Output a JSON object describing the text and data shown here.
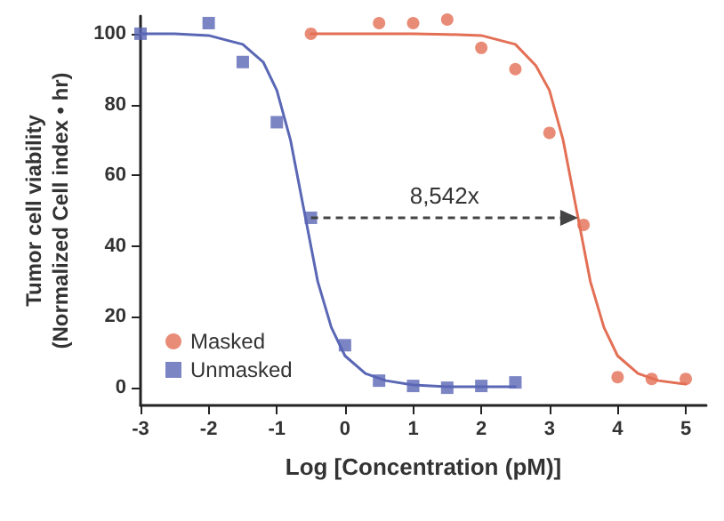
{
  "chart_data": {
    "type": "scatter",
    "xlabel": "Log [Concentration (pM)]",
    "ylabel": "Tumor cell viability\n(Normalized Cell index • hr)",
    "xlim": [
      -3,
      5.3
    ],
    "xticks": [
      -3,
      -2,
      -1,
      0,
      1,
      2,
      3,
      4,
      5
    ],
    "ylim": [
      -5,
      105
    ],
    "yticks": [
      0,
      20,
      40,
      60,
      80,
      100
    ],
    "grid": false,
    "legend": "bottom left",
    "annotations": [
      "8,542x"
    ],
    "series": [
      {
        "name": "Masked",
        "color": "#e36f55",
        "marker": "circle",
        "x": [
          -0.5,
          0.5,
          1,
          1.5,
          2,
          2.5,
          3,
          3.5,
          4,
          4.5,
          5
        ],
        "values": [
          100,
          103,
          103,
          104,
          96,
          90,
          72,
          46,
          3,
          2.5,
          2.5
        ]
      },
      {
        "name": "Unmasked",
        "color": "#5a67b5",
        "marker": "square",
        "x": [
          -3,
          -2,
          -1.5,
          -1,
          -0.5,
          0,
          0.5,
          1,
          1.5,
          2,
          2.5
        ],
        "values": [
          100,
          103,
          92,
          75,
          48,
          12,
          2,
          0.5,
          0,
          0.5,
          1.5
        ]
      },
      {
        "type": "line",
        "color": "#e36f55",
        "marker": "none",
        "x": [
          -0.5,
          0,
          0.5,
          1,
          1.5,
          2,
          2.5,
          2.8,
          3,
          3.2,
          3.4,
          3.6,
          3.8,
          4,
          4.3,
          4.6,
          5
        ],
        "values": [
          100,
          100,
          100,
          100,
          99.8,
          99.5,
          97,
          91,
          84,
          70,
          50,
          30,
          17,
          9,
          4,
          2,
          1
        ]
      },
      {
        "type": "line",
        "color": "#5a67b5",
        "marker": "none",
        "x": [
          -3,
          -2.5,
          -2,
          -1.5,
          -1.2,
          -1,
          -0.8,
          -0.6,
          -0.4,
          -0.2,
          0,
          0.3,
          0.6,
          1,
          1.5,
          2,
          2.5
        ],
        "values": [
          100,
          100,
          99.5,
          97,
          92,
          84,
          70,
          50,
          30,
          17,
          9,
          4,
          2,
          0.8,
          0.3,
          0.3,
          0.3
        ]
      }
    ]
  }
}
